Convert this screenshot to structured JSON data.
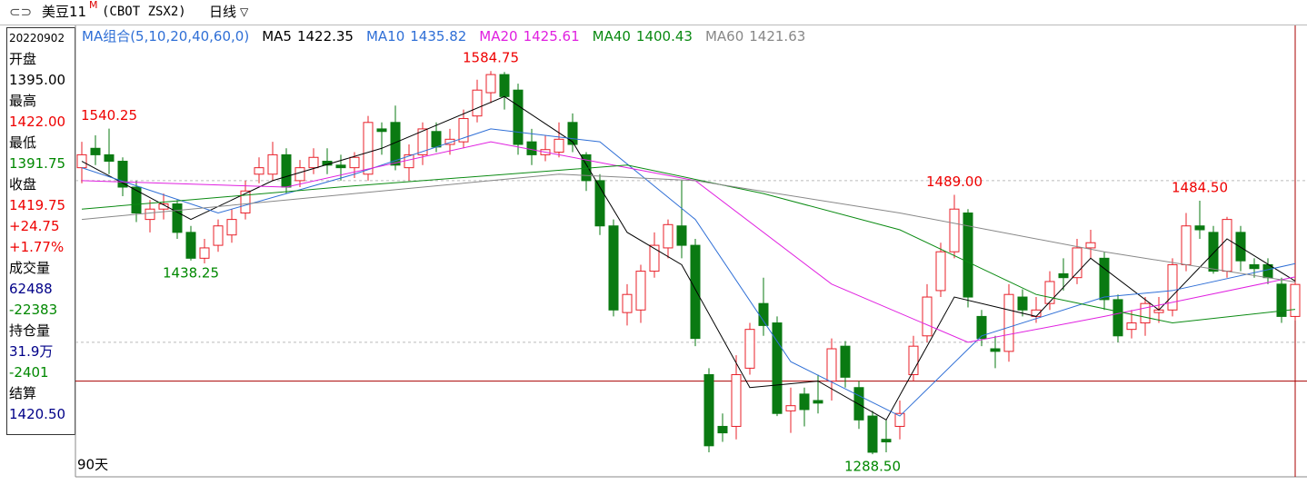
{
  "header": {
    "symbol": "美豆11",
    "symbol_sup": "M",
    "code": "(CBOT ZSX2)",
    "period": "日线"
  },
  "info_panel": [
    "20220902",
    "开盘",
    "1395.00",
    "最高",
    "1422.00",
    "最低",
    "1391.75",
    "收盘",
    "1419.75",
    "+24.75",
    "+1.77%",
    "成交量",
    "62488",
    "-22383",
    "持仓量",
    "31.9万",
    "-2401",
    "结算",
    "1420.50"
  ],
  "chart_data": {
    "type": "candlestick",
    "ma_title": "MA组合(5,10,20,40,60,0)",
    "days_label": "90天",
    "ylim": [
      1271,
      1620
    ],
    "gridlines": [
      1375,
      1500
    ],
    "reference_line": 1345,
    "up_color": "#e8202a",
    "down_color": "#0a7a12",
    "candles": [
      {
        "open": 1510,
        "high": 1530,
        "low": 1498,
        "close": 1520
      },
      {
        "open": 1525,
        "high": 1535,
        "low": 1512,
        "close": 1520
      },
      {
        "open": 1520,
        "high": 1540.25,
        "low": 1505,
        "close": 1515
      },
      {
        "open": 1515,
        "high": 1518,
        "low": 1488,
        "close": 1495
      },
      {
        "open": 1495,
        "high": 1500,
        "low": 1468,
        "close": 1475
      },
      {
        "open": 1470,
        "high": 1485,
        "low": 1460,
        "close": 1478
      },
      {
        "open": 1478,
        "high": 1490,
        "low": 1470,
        "close": 1482
      },
      {
        "open": 1482,
        "high": 1485,
        "low": 1455,
        "close": 1460
      },
      {
        "open": 1460,
        "high": 1465,
        "low": 1438.25,
        "close": 1440
      },
      {
        "open": 1440,
        "high": 1455,
        "low": 1436,
        "close": 1448
      },
      {
        "open": 1450,
        "high": 1470,
        "low": 1445,
        "close": 1465
      },
      {
        "open": 1458,
        "high": 1478,
        "low": 1452,
        "close": 1470
      },
      {
        "open": 1475,
        "high": 1500,
        "low": 1470,
        "close": 1492
      },
      {
        "open": 1505,
        "high": 1518,
        "low": 1498,
        "close": 1510
      },
      {
        "open": 1505,
        "high": 1530,
        "low": 1500,
        "close": 1520
      },
      {
        "open": 1520,
        "high": 1525,
        "low": 1490,
        "close": 1495
      },
      {
        "open": 1500,
        "high": 1516,
        "low": 1495,
        "close": 1510
      },
      {
        "open": 1510,
        "high": 1525,
        "low": 1505,
        "close": 1518
      },
      {
        "open": 1515,
        "high": 1525,
        "low": 1505,
        "close": 1512
      },
      {
        "open": 1512,
        "high": 1520,
        "low": 1500,
        "close": 1510
      },
      {
        "open": 1510,
        "high": 1522,
        "low": 1502,
        "close": 1518
      },
      {
        "open": 1505,
        "high": 1550,
        "low": 1500,
        "close": 1545
      },
      {
        "open": 1540,
        "high": 1545,
        "low": 1520,
        "close": 1538
      },
      {
        "open": 1545,
        "high": 1558,
        "low": 1508,
        "close": 1512
      },
      {
        "open": 1510,
        "high": 1528,
        "low": 1500,
        "close": 1520
      },
      {
        "open": 1520,
        "high": 1545,
        "low": 1512,
        "close": 1540
      },
      {
        "open": 1538,
        "high": 1545,
        "low": 1522,
        "close": 1526
      },
      {
        "open": 1528,
        "high": 1540,
        "low": 1520,
        "close": 1532
      },
      {
        "open": 1530,
        "high": 1555,
        "low": 1525,
        "close": 1548
      },
      {
        "open": 1550,
        "high": 1578,
        "low": 1545,
        "close": 1570
      },
      {
        "open": 1568,
        "high": 1584.75,
        "low": 1560,
        "close": 1582
      },
      {
        "open": 1582,
        "high": 1584,
        "low": 1555,
        "close": 1565
      },
      {
        "open": 1570,
        "high": 1575,
        "low": 1520,
        "close": 1528
      },
      {
        "open": 1530,
        "high": 1540,
        "low": 1512,
        "close": 1520
      },
      {
        "open": 1520,
        "high": 1535,
        "low": 1515,
        "close": 1524
      },
      {
        "open": 1522,
        "high": 1545,
        "low": 1518,
        "close": 1532
      },
      {
        "open": 1545,
        "high": 1552,
        "low": 1522,
        "close": 1528
      },
      {
        "open": 1520,
        "high": 1522,
        "low": 1492,
        "close": 1500
      },
      {
        "open": 1500,
        "high": 1505,
        "low": 1458,
        "close": 1465
      },
      {
        "open": 1465,
        "high": 1470,
        "low": 1395,
        "close": 1400
      },
      {
        "open": 1398,
        "high": 1420,
        "low": 1388,
        "close": 1412
      },
      {
        "open": 1400,
        "high": 1435,
        "low": 1390,
        "close": 1430
      },
      {
        "open": 1430,
        "high": 1460,
        "low": 1425,
        "close": 1450
      },
      {
        "open": 1448,
        "high": 1470,
        "low": 1440,
        "close": 1466
      },
      {
        "open": 1465,
        "high": 1500,
        "low": 1440,
        "close": 1450
      },
      {
        "open": 1450,
        "high": 1455,
        "low": 1372,
        "close": 1378
      },
      {
        "open": 1350,
        "high": 1355,
        "low": 1290,
        "close": 1295
      },
      {
        "open": 1310,
        "high": 1320,
        "low": 1298,
        "close": 1305
      },
      {
        "open": 1310,
        "high": 1365,
        "low": 1300,
        "close": 1350
      },
      {
        "open": 1355,
        "high": 1390,
        "low": 1350,
        "close": 1385
      },
      {
        "open": 1405,
        "high": 1425,
        "low": 1380,
        "close": 1388
      },
      {
        "open": 1390,
        "high": 1395,
        "low": 1318,
        "close": 1320
      },
      {
        "open": 1322,
        "high": 1340,
        "low": 1305,
        "close": 1326
      },
      {
        "open": 1335,
        "high": 1340,
        "low": 1310,
        "close": 1323
      },
      {
        "open": 1330,
        "high": 1350,
        "low": 1320,
        "close": 1328
      },
      {
        "open": 1345,
        "high": 1378,
        "low": 1330,
        "close": 1370
      },
      {
        "open": 1372,
        "high": 1376,
        "low": 1340,
        "close": 1348
      },
      {
        "open": 1340,
        "high": 1345,
        "low": 1308,
        "close": 1315
      },
      {
        "open": 1318,
        "high": 1322,
        "low": 1288.5,
        "close": 1290
      },
      {
        "open": 1300,
        "high": 1315,
        "low": 1290,
        "close": 1298
      },
      {
        "open": 1310,
        "high": 1330,
        "low": 1300,
        "close": 1320
      },
      {
        "open": 1350,
        "high": 1380,
        "low": 1345,
        "close": 1372
      },
      {
        "open": 1380,
        "high": 1420,
        "low": 1375,
        "close": 1410
      },
      {
        "open": 1415,
        "high": 1452,
        "low": 1410,
        "close": 1445
      },
      {
        "open": 1445,
        "high": 1489,
        "low": 1440,
        "close": 1478
      },
      {
        "open": 1475,
        "high": 1478,
        "low": 1402,
        "close": 1410
      },
      {
        "open": 1395,
        "high": 1400,
        "low": 1372,
        "close": 1378
      },
      {
        "open": 1370,
        "high": 1380,
        "low": 1355,
        "close": 1368
      },
      {
        "open": 1368,
        "high": 1420,
        "low": 1360,
        "close": 1412
      },
      {
        "open": 1410,
        "high": 1416,
        "low": 1395,
        "close": 1400
      },
      {
        "open": 1395,
        "high": 1410,
        "low": 1390,
        "close": 1400
      },
      {
        "open": 1405,
        "high": 1430,
        "low": 1400,
        "close": 1422
      },
      {
        "open": 1428,
        "high": 1440,
        "low": 1415,
        "close": 1425
      },
      {
        "open": 1425,
        "high": 1455,
        "low": 1420,
        "close": 1448
      },
      {
        "open": 1448,
        "high": 1462,
        "low": 1440,
        "close": 1452
      },
      {
        "open": 1440,
        "high": 1445,
        "low": 1400,
        "close": 1408
      },
      {
        "open": 1408,
        "high": 1412,
        "low": 1375,
        "close": 1380
      },
      {
        "open": 1385,
        "high": 1400,
        "low": 1378,
        "close": 1390
      },
      {
        "open": 1390,
        "high": 1410,
        "low": 1380,
        "close": 1405
      },
      {
        "open": 1398,
        "high": 1410,
        "low": 1390,
        "close": 1400
      },
      {
        "open": 1400,
        "high": 1440,
        "low": 1395,
        "close": 1435
      },
      {
        "open": 1435,
        "high": 1475,
        "low": 1430,
        "close": 1465
      },
      {
        "open": 1465,
        "high": 1484.5,
        "low": 1455,
        "close": 1462
      },
      {
        "open": 1460,
        "high": 1465,
        "low": 1428,
        "close": 1430
      },
      {
        "open": 1430,
        "high": 1472,
        "low": 1425,
        "close": 1470
      },
      {
        "open": 1460,
        "high": 1465,
        "low": 1430,
        "close": 1438
      },
      {
        "open": 1435,
        "high": 1440,
        "low": 1425,
        "close": 1432
      },
      {
        "open": 1435,
        "high": 1440,
        "low": 1420,
        "close": 1425
      },
      {
        "open": 1420,
        "high": 1425,
        "low": 1390,
        "close": 1395
      },
      {
        "open": 1395,
        "high": 1422,
        "low": 1391.75,
        "close": 1419.75
      }
    ],
    "annotations": [
      {
        "text": "1540.25",
        "candle": 2,
        "side": "high"
      },
      {
        "text": "1438.25",
        "candle": 8,
        "side": "low"
      },
      {
        "text": "1584.75",
        "candle": 30,
        "side": "high"
      },
      {
        "text": "1489.00",
        "candle": 64,
        "side": "high"
      },
      {
        "text": "1484.50",
        "candle": 82,
        "side": "high"
      },
      {
        "text": "1288.50",
        "candle": 58,
        "side": "low"
      }
    ],
    "series": [
      {
        "name": "MA5",
        "legend_value": "1422.35",
        "color": "#000000",
        "x": [
          0,
          8,
          14,
          22,
          31,
          36,
          40,
          44,
          49,
          54,
          59,
          64,
          70,
          74,
          79,
          84,
          89
        ],
        "values": [
          1515,
          1470,
          1500,
          1525,
          1565,
          1530,
          1460,
          1435,
          1340,
          1345,
          1315,
          1410,
          1395,
          1440,
          1400,
          1455,
          1422.35
        ]
      },
      {
        "name": "MA10",
        "legend_value": "1435.82",
        "color": "#2f6fd6",
        "x": [
          0,
          10,
          20,
          30,
          38,
          45,
          52,
          60,
          66,
          75,
          80,
          89
        ],
        "values": [
          1510,
          1475,
          1505,
          1540,
          1530,
          1470,
          1360,
          1318,
          1380,
          1410,
          1415,
          1435.82
        ]
      },
      {
        "name": "MA20",
        "legend_value": "1425.61",
        "color": "#e020e0",
        "x": [
          0,
          15,
          30,
          40,
          45,
          55,
          65,
          75,
          89
        ],
        "values": [
          1500,
          1495,
          1530,
          1510,
          1500,
          1420,
          1375,
          1395,
          1425.61
        ]
      },
      {
        "name": "MA40",
        "legend_value": "1400.43",
        "color": "#0a8a12",
        "x": [
          0,
          20,
          40,
          50,
          60,
          70,
          80,
          89
        ],
        "values": [
          1478,
          1496,
          1512,
          1490,
          1462,
          1412,
          1390,
          1400.43
        ]
      },
      {
        "name": "MA60",
        "legend_value": "1421.63",
        "color": "#888888",
        "x": [
          0,
          20,
          35,
          45,
          60,
          75,
          89
        ],
        "values": [
          1470,
          1490,
          1505,
          1500,
          1475,
          1445,
          1421.63
        ]
      }
    ]
  }
}
